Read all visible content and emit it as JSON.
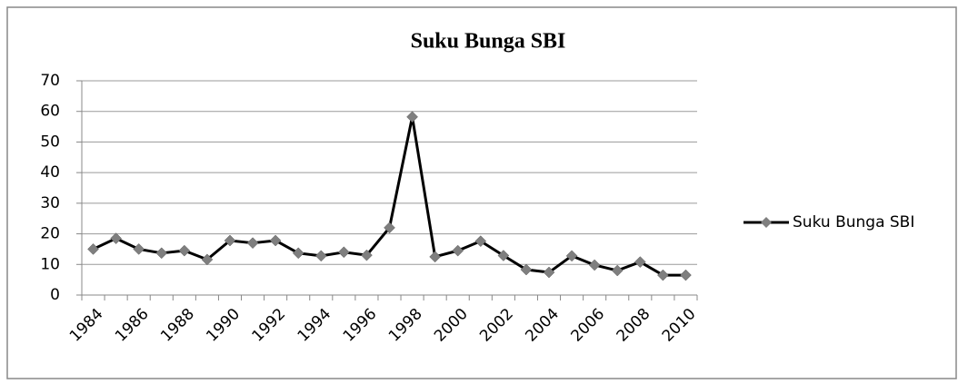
{
  "chart_data": {
    "type": "line",
    "title": "Suku Bunga SBI",
    "categories": [
      "1984",
      null,
      "1986",
      null,
      "1988",
      null,
      "1990",
      null,
      "1992",
      null,
      "1994",
      null,
      "1996",
      null,
      "1998",
      null,
      "2000",
      null,
      "2002",
      null,
      "2004",
      null,
      "2006",
      null,
      "2008",
      null,
      "2010"
    ],
    "series": [
      {
        "name": "Suku Bunga SBI",
        "color": "#000000",
        "values": [
          15,
          18.5,
          15,
          13.7,
          14.5,
          11.6,
          17.8,
          17,
          17.8,
          13.7,
          12.8,
          14,
          13,
          22,
          58.2,
          12.5,
          14.5,
          17.6,
          12.9,
          8.3,
          7.4,
          12.8,
          9.8,
          8,
          10.8,
          6.5,
          6.5
        ]
      }
    ],
    "ylim": [
      0,
      70
    ],
    "yticks": [
      0,
      10,
      20,
      30,
      40,
      50,
      60,
      70
    ],
    "grid": true,
    "legend": "right",
    "marker_color": "#7f7f7f"
  }
}
